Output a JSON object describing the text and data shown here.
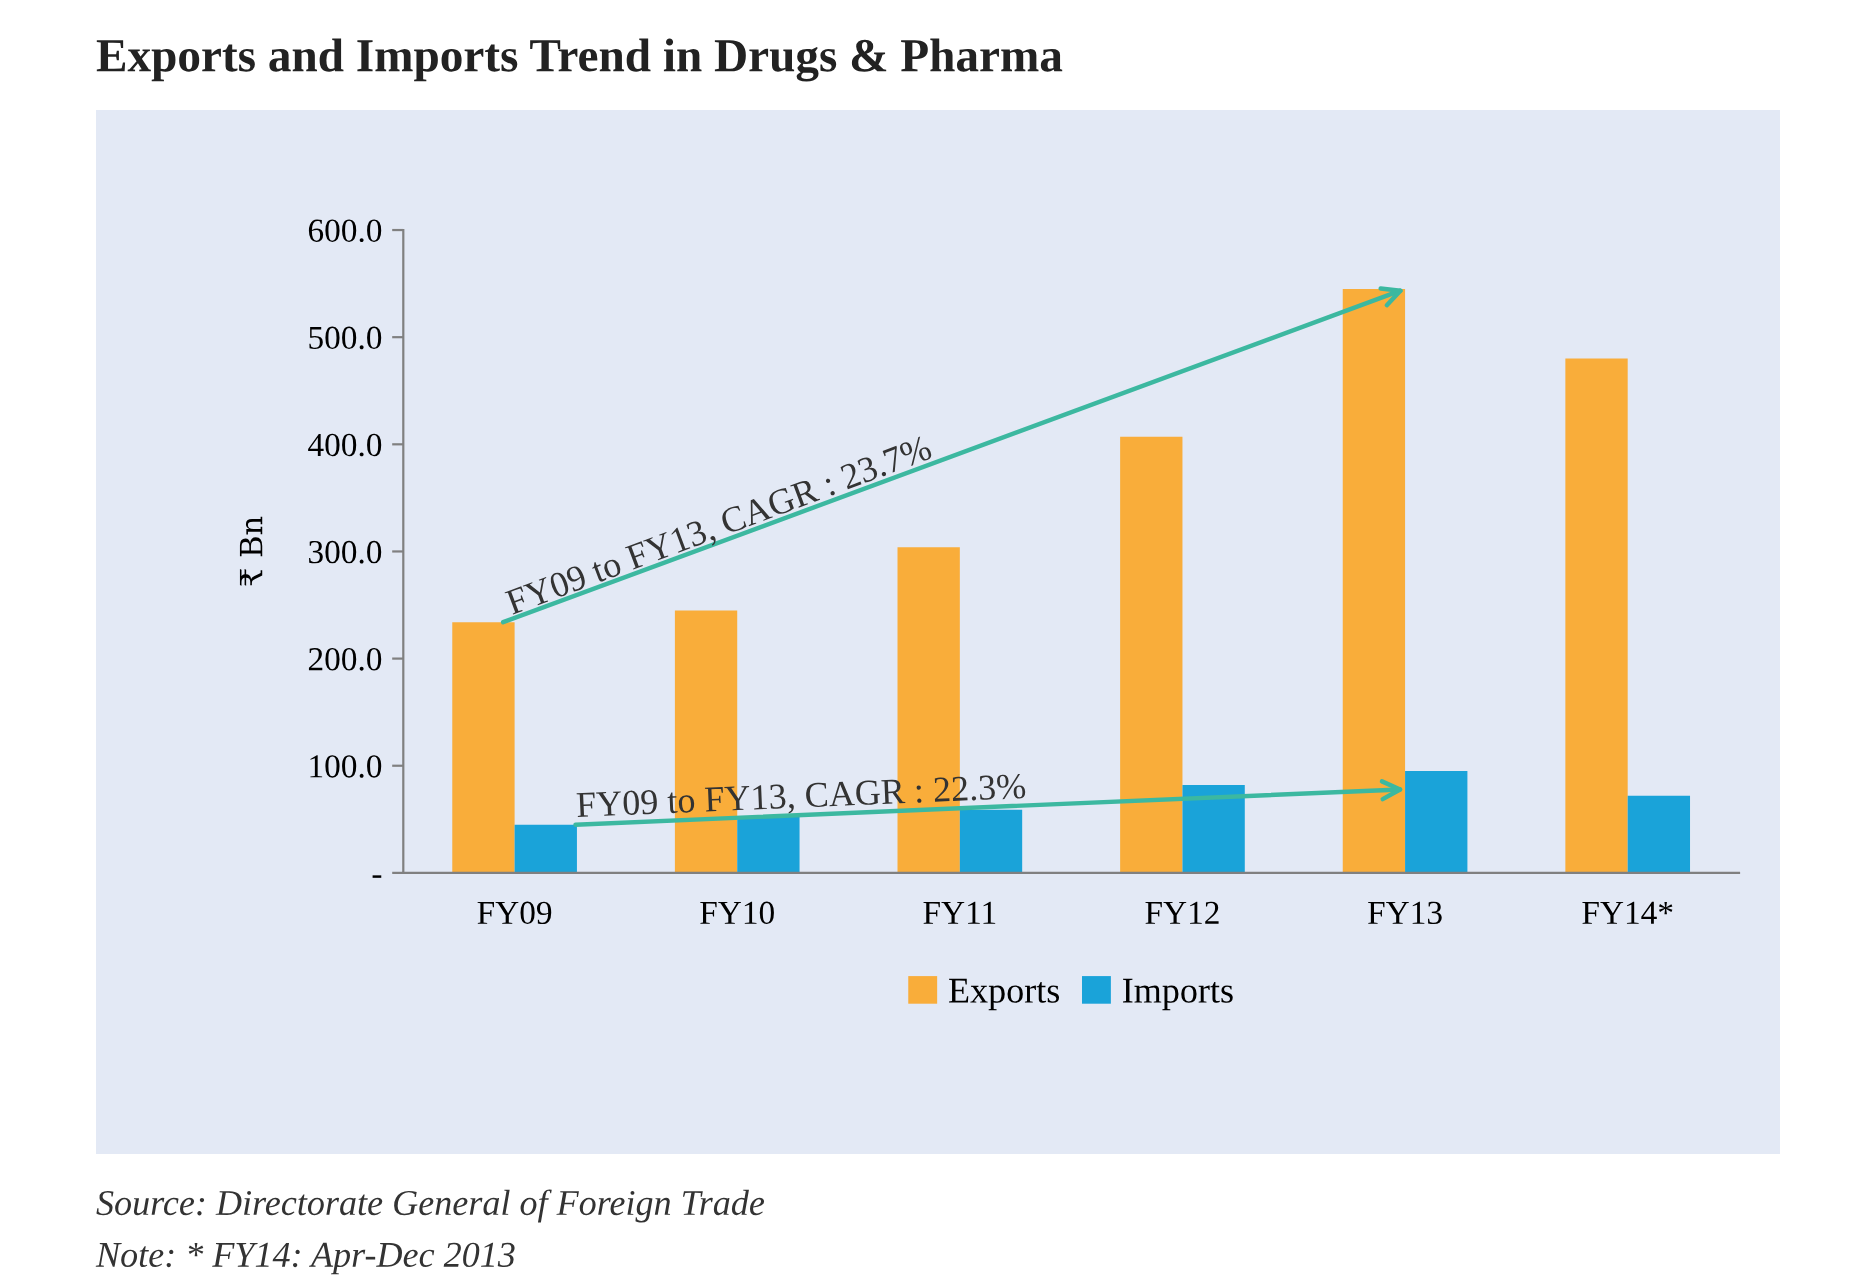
{
  "chart_data": {
    "type": "bar",
    "title": "Exports and Imports Trend in Drugs & Pharma",
    "ylabel": "₹ Bn",
    "categories": [
      "FY09",
      "FY10",
      "FY11",
      "FY12",
      "FY13",
      "FY14*"
    ],
    "series": [
      {
        "name": "Exports",
        "color": "#f9ad3a",
        "values": [
          234,
          245,
          304,
          407,
          545,
          480
        ]
      },
      {
        "name": "Imports",
        "color": "#1aa3d9",
        "values": [
          45,
          53,
          59,
          82,
          95,
          72
        ]
      }
    ],
    "ylim": [
      0,
      600
    ],
    "yticks": [
      {
        "value": 0,
        "label": "-"
      },
      {
        "value": 100,
        "label": "100.0"
      },
      {
        "value": 200,
        "label": "200.0"
      },
      {
        "value": 300,
        "label": "300.0"
      },
      {
        "value": 400,
        "label": "400.0"
      },
      {
        "value": 500,
        "label": "500.0"
      },
      {
        "value": 600,
        "label": "600.0"
      }
    ],
    "annotations": [
      {
        "text": "FY09 to FY13, CAGR : 23.7%",
        "x": "FY13",
        "y": 545
      },
      {
        "text": "FY09 to FY13, CAGR : 22.3%",
        "x": "FY13",
        "y": 78
      },
      "Source: Directorate General of Foreign Trade",
      "Note: * FY14: Apr-Dec 2013"
    ],
    "grid": false,
    "legend": "bottom"
  }
}
